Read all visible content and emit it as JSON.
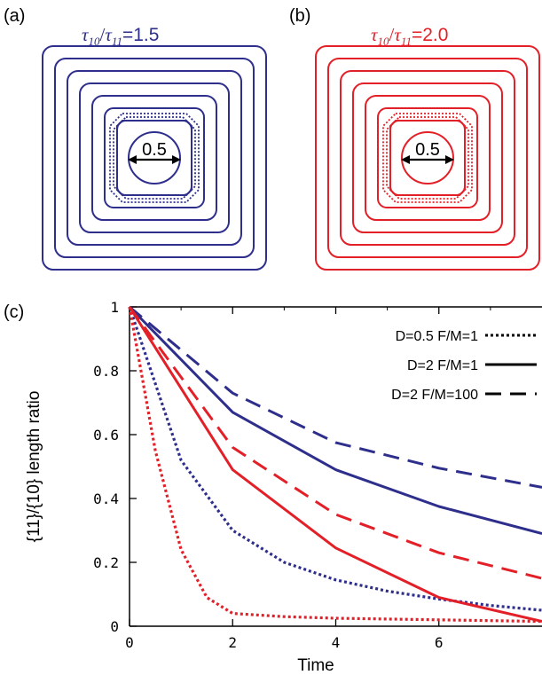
{
  "panels": {
    "a": {
      "label": "(a)",
      "title": {
        "tau_num": "τ",
        "sub_num": "10",
        "slash": "/",
        "tau_den": "τ",
        "sub_den": "11",
        "value": "=1.5"
      },
      "color": "#2e2e8c",
      "circle_label": "0.5",
      "ratio": 1.5
    },
    "b": {
      "label": "(b)",
      "title": {
        "tau_num": "τ",
        "sub_num": "10",
        "slash": "/",
        "tau_den": "τ",
        "sub_den": "11",
        "value": "=2.0"
      },
      "color": "#e32028",
      "circle_label": "0.5",
      "ratio": 2.0
    },
    "c": {
      "label": "(c)"
    }
  },
  "chart_data": {
    "type": "line",
    "xlabel": "Time",
    "ylabel": "{11}/{10} length ratio",
    "xlim": [
      0,
      8
    ],
    "ylim": [
      0,
      1
    ],
    "xticks": [
      "0",
      "2",
      "4",
      "6"
    ],
    "yticks": [
      "0",
      "0.2",
      "0.4",
      "0.6",
      "0.8",
      "1"
    ],
    "legend": {
      "position": "top-right",
      "entries": [
        {
          "label": "D=0.5 F/M=1",
          "style": "dotted"
        },
        {
          "label": "D=2 F/M=1",
          "style": "solid"
        },
        {
          "label": "D=2 F/M=100",
          "style": "dashed"
        }
      ]
    },
    "series": [
      {
        "group": "a",
        "style": "solid",
        "color": "#2e2e8c",
        "x": [
          0,
          2,
          4,
          6,
          8
        ],
        "y": [
          1.0,
          0.67,
          0.49,
          0.375,
          0.29
        ]
      },
      {
        "group": "a",
        "style": "dashed",
        "color": "#2e2e8c",
        "x": [
          0,
          2,
          4,
          6,
          8
        ],
        "y": [
          1.0,
          0.73,
          0.575,
          0.495,
          0.435
        ]
      },
      {
        "group": "a",
        "style": "dotted",
        "color": "#2e2e8c",
        "x": [
          0,
          1,
          2,
          3,
          4,
          5,
          6,
          7,
          8
        ],
        "y": [
          1.0,
          0.52,
          0.3,
          0.2,
          0.145,
          0.11,
          0.085,
          0.065,
          0.05
        ]
      },
      {
        "group": "b",
        "style": "solid",
        "color": "#e32028",
        "x": [
          0,
          2,
          4,
          6,
          8
        ],
        "y": [
          1.0,
          0.49,
          0.245,
          0.09,
          0.015
        ]
      },
      {
        "group": "b",
        "style": "dashed",
        "color": "#e32028",
        "x": [
          0,
          2,
          4,
          6,
          8
        ],
        "y": [
          1.0,
          0.56,
          0.35,
          0.23,
          0.15
        ]
      },
      {
        "group": "b",
        "style": "dotted",
        "color": "#e32028",
        "x": [
          0,
          0.5,
          1,
          1.5,
          2,
          3,
          4,
          6,
          8
        ],
        "y": [
          1.0,
          0.55,
          0.24,
          0.09,
          0.04,
          0.03,
          0.025,
          0.02,
          0.015
        ]
      }
    ]
  }
}
